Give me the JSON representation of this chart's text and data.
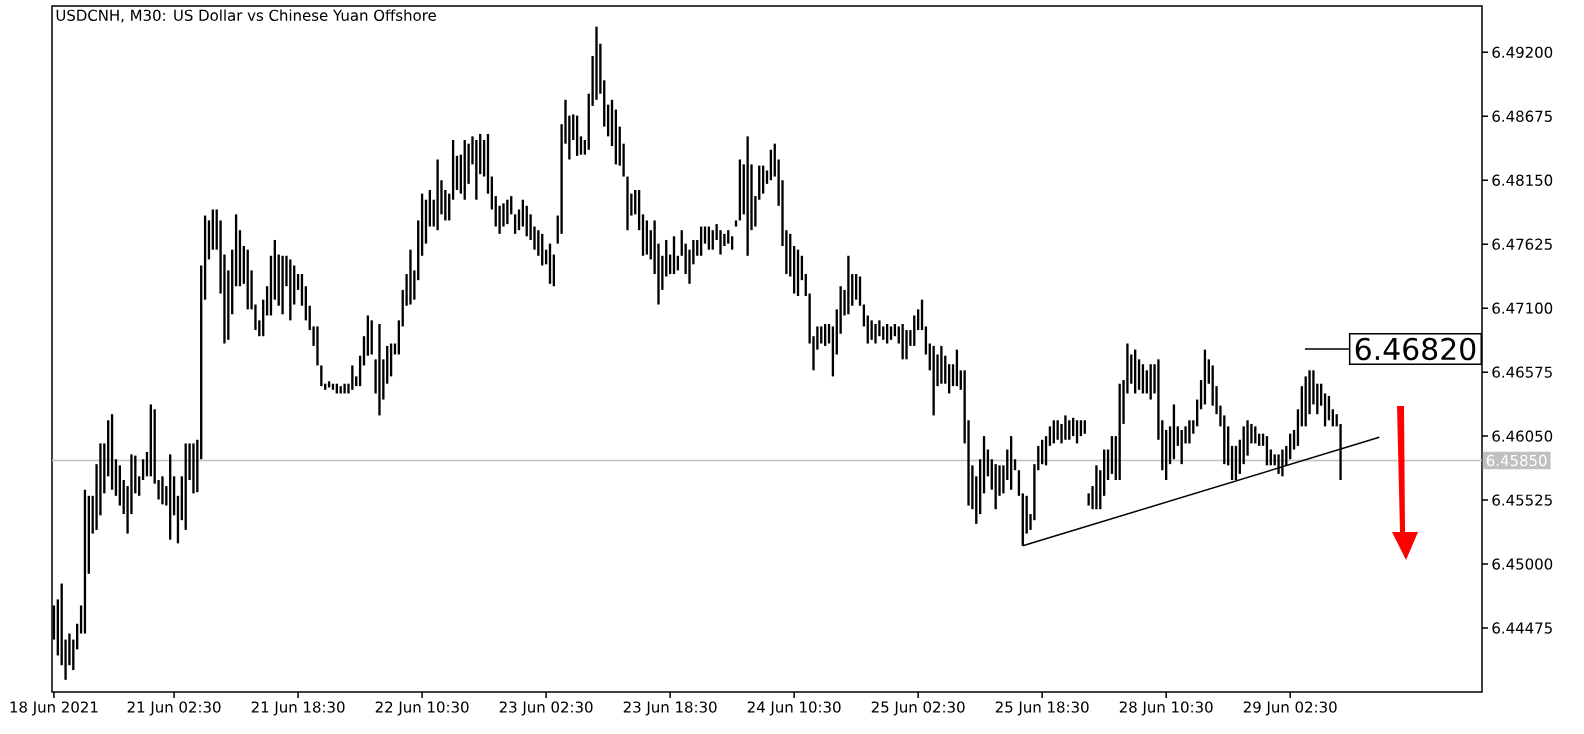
{
  "chart_data": {
    "type": "candlestick",
    "title": "USDCNH, M30:  US Dollar vs Chinese Yuan Offshore",
    "color": "#000000",
    "categories": [
      "18 Jun 2021",
      null,
      null,
      null,
      null,
      null,
      null,
      null,
      null,
      null,
      null,
      null,
      null,
      null,
      null,
      null,
      null,
      null,
      null,
      null,
      null,
      null,
      null,
      null,
      null,
      null,
      null,
      null,
      null,
      null,
      null,
      "21 Jun 02:30",
      null,
      null,
      null,
      null,
      null,
      null,
      null,
      null,
      null,
      null,
      null,
      null,
      null,
      null,
      null,
      null,
      null,
      null,
      null,
      null,
      null,
      null,
      null,
      null,
      null,
      null,
      null,
      null,
      null,
      null,
      null,
      "21 Jun 18:30",
      null,
      null,
      null,
      null,
      null,
      null,
      null,
      null,
      null,
      null,
      null,
      null,
      null,
      null,
      null,
      null,
      null,
      null,
      null,
      null,
      null,
      null,
      null,
      null,
      null,
      null,
      null,
      null,
      null,
      null,
      null,
      "22 Jun 10:30",
      null,
      null,
      null,
      null,
      null,
      null,
      null,
      null,
      null,
      null,
      null,
      null,
      null,
      null,
      null,
      null,
      null,
      null,
      null,
      null,
      null,
      null,
      null,
      null,
      null,
      null,
      null,
      null,
      null,
      null,
      null,
      "23 Jun 02:30",
      null,
      null,
      null,
      null,
      null,
      null,
      null,
      null,
      null,
      null,
      null,
      null,
      null,
      null,
      null,
      null,
      null,
      null,
      null,
      null,
      null,
      null,
      null,
      null,
      null,
      null,
      null,
      null,
      null,
      null,
      null,
      "23 Jun 18:30",
      null,
      null,
      null,
      null,
      null,
      null,
      null,
      null,
      null,
      null,
      null,
      null,
      null,
      null,
      null,
      null,
      null,
      null,
      null,
      null,
      null,
      null,
      null,
      null,
      null,
      null,
      null,
      null,
      null,
      null,
      null,
      "24 Jun 10:30",
      null,
      null,
      null,
      null,
      null,
      null,
      null,
      null,
      null,
      null,
      null,
      null,
      null,
      null,
      null,
      null,
      null,
      null,
      null,
      null,
      null,
      null,
      null,
      null,
      null,
      null,
      null,
      null,
      null,
      null,
      null,
      "25 Jun 02:30",
      null,
      null,
      null,
      null,
      null,
      null,
      null,
      null,
      null,
      null,
      null,
      null,
      null,
      null,
      null,
      null,
      null,
      null,
      null,
      null,
      null,
      null,
      null,
      null,
      null,
      null,
      null,
      null,
      null,
      null,
      null,
      "25 Jun 18:30",
      null,
      null,
      null,
      null,
      null,
      null,
      null,
      null,
      null,
      null,
      null,
      null,
      null,
      null,
      null,
      null,
      null,
      null,
      null,
      null,
      null,
      null,
      null,
      null,
      null,
      null,
      null,
      null,
      null,
      null,
      null,
      "28 Jun 10:30",
      null,
      null,
      null,
      null,
      null,
      null,
      null,
      null,
      null,
      null,
      null,
      null,
      null,
      null,
      null,
      null,
      null,
      null,
      null,
      null,
      null,
      null,
      null,
      null,
      null,
      null,
      null,
      null,
      null,
      null,
      null,
      "29 Jun 02:30",
      null,
      null,
      null,
      null,
      null,
      null,
      null,
      null,
      null,
      null,
      null,
      null,
      null,
      null,
      null,
      null,
      null,
      null,
      null,
      null,
      null,
      null,
      null,
      null,
      null,
      null,
      null,
      null,
      null,
      null,
      null,
      null,
      null,
      null,
      null,
      null,
      null,
      null,
      null,
      null,
      null,
      null,
      null,
      null,
      null,
      null,
      null,
      null,
      null
    ],
    "ohlc": [
      [
        6.4438,
        6.4466,
        6.4438,
        6.4466
      ],
      [
        6.4471,
        6.4471,
        6.4425,
        6.4425
      ],
      [
        6.4484,
        6.4484,
        6.4417,
        6.4417
      ],
      [
        6.4438,
        6.4438,
        6.4405,
        6.4405
      ],
      [
        6.4417,
        6.4443,
        6.4417,
        6.4443
      ],
      [
        6.4438,
        6.4438,
        6.4413,
        6.4413
      ],
      [
        6.443,
        6.4451,
        6.443,
        6.4451
      ],
      [
        6.4443,
        6.4466,
        6.4443,
        6.4466
      ],
      [
        6.4443,
        6.4561,
        6.4443,
        6.4561
      ],
      [
        6.4492,
        6.4556,
        6.4492,
        6.4556
      ],
      [
        6.4525,
        6.4556,
        6.4525,
        6.4556
      ],
      [
        6.4528,
        6.4582,
        6.4528,
        6.4582
      ],
      [
        6.454,
        6.4599,
        6.454,
        6.4599
      ],
      [
        6.4558,
        6.4599,
        6.4558,
        6.4599
      ],
      [
        6.4572,
        6.4618,
        6.4572,
        6.4618
      ],
      [
        6.4623,
        6.4623,
        6.4561,
        6.4561
      ],
      [
        6.4586,
        6.4586,
        6.4556,
        6.4556
      ],
      [
        6.4581,
        6.4581,
        6.4548,
        6.4548
      ],
      [
        6.4569,
        6.4569,
        6.4541,
        6.4541
      ],
      [
        6.4564,
        6.4564,
        6.4525,
        6.4525
      ],
      [
        6.4541,
        6.459,
        6.4541,
        6.459
      ],
      [
        6.4558,
        6.4589,
        6.4558,
        6.4589
      ],
      [
        6.4572,
        6.4572,
        6.4556,
        6.4556
      ],
      [
        6.4569,
        6.4586,
        6.4569,
        6.4586
      ],
      [
        6.4572,
        6.4592,
        6.4572,
        6.4592
      ],
      [
        6.4572,
        6.4631,
        6.4572,
        6.4631
      ],
      [
        6.4627,
        6.4627,
        6.4566,
        6.4566
      ],
      [
        6.4569,
        6.4569,
        6.4553,
        6.4553
      ],
      [
        6.4572,
        6.4572,
        6.4549,
        6.4549
      ],
      [
        6.4564,
        6.4564,
        6.4548,
        6.4548
      ],
      [
        6.452,
        6.459,
        6.452,
        6.459
      ],
      [
        6.4572,
        6.4572,
        6.454,
        6.454
      ],
      [
        6.4556,
        6.4556,
        6.4517,
        6.4517
      ],
      [
        6.4536,
        6.4572,
        6.4536,
        6.4572
      ],
      [
        6.4528,
        6.4599,
        6.4528,
        6.4599
      ],
      [
        6.4569,
        6.4599,
        6.4569,
        6.4599
      ],
      [
        6.4599,
        6.4599,
        6.4558,
        6.4558
      ],
      [
        6.4559,
        6.4602,
        6.4559,
        6.4602
      ],
      [
        6.4586,
        6.4745,
        6.4586,
        6.4745
      ],
      [
        6.4717,
        6.4786,
        6.4717,
        6.4786
      ],
      [
        6.475,
        6.4782,
        6.475,
        6.4782
      ],
      [
        6.4758,
        6.4791,
        6.4758,
        6.4791
      ],
      [
        6.4791,
        6.4791,
        6.4758,
        6.4758
      ],
      [
        6.4782,
        6.4782,
        6.4722,
        6.4722
      ],
      [
        6.4754,
        6.4754,
        6.4681,
        6.4681
      ],
      [
        6.4684,
        6.4741,
        6.4684,
        6.4741
      ],
      [
        6.4705,
        6.4758,
        6.4705,
        6.4758
      ],
      [
        6.4728,
        6.4787,
        6.4728,
        6.4787
      ],
      [
        6.4774,
        6.4774,
        6.4728,
        6.4728
      ],
      [
        6.4761,
        6.4761,
        6.473,
        6.473
      ],
      [
        6.4758,
        6.4758,
        6.4709,
        6.4709
      ],
      [
        6.4741,
        6.4741,
        6.4709,
        6.4709
      ],
      [
        6.4713,
        6.4713,
        6.4692,
        6.4692
      ],
      [
        6.47,
        6.47,
        6.4687,
        6.4687
      ],
      [
        6.4687,
        6.4717,
        6.4687,
        6.4717
      ],
      [
        6.4704,
        6.4728,
        6.4704,
        6.4728
      ],
      [
        6.4704,
        6.4753,
        6.4704,
        6.4753
      ],
      [
        6.4717,
        6.4766,
        6.4717,
        6.4766
      ],
      [
        6.4754,
        6.4754,
        6.4712,
        6.4712
      ],
      [
        6.4753,
        6.4753,
        6.4705,
        6.4705
      ],
      [
        6.4728,
        6.4753,
        6.4728,
        6.4753
      ],
      [
        6.475,
        6.475,
        6.47,
        6.47
      ],
      [
        6.4713,
        6.4745,
        6.4713,
        6.4745
      ],
      [
        6.4725,
        6.4738,
        6.4725,
        6.4738
      ],
      [
        6.4738,
        6.4738,
        6.4712,
        6.4712
      ],
      [
        6.4728,
        6.4728,
        6.47,
        6.47
      ],
      [
        6.4712,
        6.4712,
        6.4692,
        6.4692
      ],
      [
        6.4695,
        6.4695,
        6.4679,
        6.4679
      ],
      [
        6.4695,
        6.4695,
        6.4663,
        6.4663
      ],
      [
        6.4663,
        6.4663,
        6.4646,
        6.4646
      ],
      [
        6.4648,
        6.4648,
        6.4643,
        6.4643
      ],
      [
        6.4645,
        6.465,
        6.4645,
        6.465
      ],
      [
        6.4648,
        6.4648,
        6.4643,
        6.4643
      ],
      [
        6.4648,
        6.4648,
        6.464,
        6.464
      ],
      [
        6.4646,
        6.4646,
        6.464,
        6.464
      ],
      [
        6.464,
        6.4648,
        6.464,
        6.4648
      ],
      [
        6.4648,
        6.4648,
        6.464,
        6.464
      ],
      [
        6.4643,
        6.4663,
        6.4643,
        6.4663
      ],
      [
        6.4654,
        6.4654,
        6.4646,
        6.4646
      ],
      [
        6.4646,
        6.4671,
        6.4646,
        6.4671
      ],
      [
        6.4663,
        6.4687,
        6.4663,
        6.4687
      ],
      [
        6.4671,
        6.4704,
        6.4671,
        6.4704
      ],
      [
        6.47,
        6.47,
        6.4672,
        6.4672
      ],
      [
        6.4668,
        6.4668,
        6.464,
        6.464
      ],
      [
        6.4622,
        6.4697,
        6.4622,
        6.4697
      ],
      [
        6.4668,
        6.4668,
        6.4635,
        6.4635
      ],
      [
        6.4648,
        6.4679,
        6.4648,
        6.4679
      ],
      [
        6.4654,
        6.4681,
        6.4654,
        6.4681
      ],
      [
        6.4672,
        6.4681,
        6.4672,
        6.4681
      ],
      [
        6.4672,
        6.47,
        6.4672,
        6.47
      ],
      [
        6.4695,
        6.4725,
        6.4695,
        6.4725
      ],
      [
        6.4712,
        6.4738,
        6.4712,
        6.4738
      ],
      [
        6.4713,
        6.4758,
        6.4713,
        6.4758
      ],
      [
        6.4741,
        6.4741,
        6.4717,
        6.4717
      ],
      [
        6.4733,
        6.4782,
        6.4733,
        6.4782
      ],
      [
        6.4753,
        6.4804,
        6.4753,
        6.4804
      ],
      [
        6.4763,
        6.4799,
        6.4763,
        6.4799
      ],
      [
        6.4777,
        6.4807,
        6.4777,
        6.4807
      ],
      [
        6.4799,
        6.4799,
        6.4777,
        6.4777
      ],
      [
        6.4774,
        6.4832,
        6.4774,
        6.4832
      ],
      [
        6.4815,
        6.4815,
        6.4787,
        6.4787
      ],
      [
        6.4807,
        6.4807,
        6.4782,
        6.4782
      ],
      [
        6.4782,
        6.4804,
        6.4782,
        6.4804
      ],
      [
        6.4799,
        6.4848,
        6.4799,
        6.4848
      ],
      [
        6.4835,
        6.4835,
        6.4807,
        6.4807
      ],
      [
        6.4804,
        6.4836,
        6.4804,
        6.4836
      ],
      [
        6.4799,
        6.4848,
        6.4799,
        6.4848
      ],
      [
        6.4845,
        6.4845,
        6.4812,
        6.4812
      ],
      [
        6.4828,
        6.4851,
        6.4828,
        6.4851
      ],
      [
        6.4848,
        6.4848,
        6.4799,
        6.4799
      ],
      [
        6.482,
        6.4853,
        6.482,
        6.4853
      ],
      [
        6.4848,
        6.4848,
        6.4818,
        6.4818
      ],
      [
        6.4804,
        6.4853,
        6.4804,
        6.4853
      ],
      [
        6.4818,
        6.4818,
        6.4791,
        6.4791
      ],
      [
        6.4802,
        6.4802,
        6.4777,
        6.4777
      ],
      [
        6.4794,
        6.4794,
        6.4771,
        6.4771
      ],
      [
        6.4777,
        6.4796,
        6.4777,
        6.4796
      ],
      [
        6.4779,
        6.4799,
        6.4779,
        6.4799
      ],
      [
        6.4787,
        6.4802,
        6.4787,
        6.4802
      ],
      [
        6.4787,
        6.4787,
        6.4771,
        6.4771
      ],
      [
        6.4774,
        6.4791,
        6.4774,
        6.4791
      ],
      [
        6.4777,
        6.4799,
        6.4777,
        6.4799
      ],
      [
        6.4794,
        6.4794,
        6.4769,
        6.4769
      ],
      [
        6.4787,
        6.4787,
        6.4766,
        6.4766
      ],
      [
        6.4777,
        6.4777,
        6.4758,
        6.4758
      ],
      [
        6.4774,
        6.4774,
        6.4753,
        6.4753
      ],
      [
        6.4771,
        6.4771,
        6.4745,
        6.4745
      ],
      [
        6.4758,
        6.4758,
        6.4746,
        6.4746
      ],
      [
        6.4763,
        6.4763,
        6.473,
        6.473
      ],
      [
        6.4754,
        6.4754,
        6.4728,
        6.4728
      ],
      [
        6.4763,
        6.4786,
        6.4763,
        6.4786
      ],
      [
        6.4771,
        6.4861,
        6.4771,
        6.4861
      ],
      [
        6.4845,
        6.4881,
        6.4845,
        6.4881
      ],
      [
        6.4868,
        6.4868,
        6.4832,
        6.4832
      ],
      [
        6.4848,
        6.4869,
        6.4848,
        6.4869
      ],
      [
        6.4868,
        6.4868,
        6.4835,
        6.4835
      ],
      [
        6.4851,
        6.4851,
        6.4836,
        6.4836
      ],
      [
        6.4836,
        6.4848,
        6.4836,
        6.4848
      ],
      [
        6.484,
        6.4886,
        6.484,
        6.4886
      ],
      [
        6.4876,
        6.4917,
        6.4876,
        6.4917
      ],
      [
        6.4881,
        6.4941,
        6.4881,
        6.4941
      ],
      [
        6.4927,
        6.4927,
        6.4886,
        6.4886
      ],
      [
        6.4897,
        6.4897,
        6.4859,
        6.4859
      ],
      [
        6.4877,
        6.4877,
        6.4851,
        6.4851
      ],
      [
        6.4881,
        6.4881,
        6.4843,
        6.4843
      ],
      [
        6.4873,
        6.4873,
        6.4828,
        6.4828
      ],
      [
        6.4859,
        6.4859,
        6.4827,
        6.4827
      ],
      [
        6.4845,
        6.4845,
        6.4818,
        6.4818
      ],
      [
        6.4818,
        6.4818,
        6.4774,
        6.4774
      ],
      [
        6.4786,
        6.4804,
        6.4786,
        6.4804
      ],
      [
        6.4787,
        6.4807,
        6.4787,
        6.4807
      ],
      [
        6.4807,
        6.4807,
        6.4774,
        6.4774
      ],
      [
        6.4787,
        6.4787,
        6.4753,
        6.4753
      ],
      [
        6.4754,
        6.4782,
        6.4754,
        6.4782
      ],
      [
        6.4774,
        6.4774,
        6.475,
        6.475
      ],
      [
        6.4782,
        6.4782,
        6.4738,
        6.4738
      ],
      [
        6.4763,
        6.4763,
        6.4713,
        6.4713
      ],
      [
        6.4725,
        6.4753,
        6.4725,
        6.4753
      ],
      [
        6.4736,
        6.4766,
        6.4736,
        6.4766
      ],
      [
        6.4754,
        6.4754,
        6.4738,
        6.4738
      ],
      [
        6.4738,
        6.4769,
        6.4738,
        6.4769
      ],
      [
        6.4753,
        6.4753,
        6.4741,
        6.4741
      ],
      [
        6.4753,
        6.4774,
        6.4753,
        6.4774
      ],
      [
        6.4763,
        6.4763,
        6.4738,
        6.4738
      ],
      [
        6.4758,
        6.4758,
        6.473,
        6.473
      ],
      [
        6.4746,
        6.4766,
        6.4746,
        6.4766
      ],
      [
        6.4753,
        6.4766,
        6.4753,
        6.4766
      ],
      [
        6.4753,
        6.4777,
        6.4753,
        6.4777
      ],
      [
        6.4763,
        6.4777,
        6.4763,
        6.4777
      ],
      [
        6.4777,
        6.4777,
        6.4758,
        6.4758
      ],
      [
        6.4774,
        6.4774,
        6.4758,
        6.4758
      ],
      [
        6.4766,
        6.4779,
        6.4766,
        6.4779
      ],
      [
        6.4774,
        6.4774,
        6.4754,
        6.4754
      ],
      [
        6.4761,
        6.4771,
        6.4761,
        6.4771
      ],
      [
        6.4763,
        6.4774,
        6.4763,
        6.4774
      ],
      [
        6.4769,
        6.4769,
        6.4758,
        6.4758
      ],
      [
        6.4777,
        6.4782,
        6.4777,
        6.4782
      ],
      [
        6.4782,
        6.4832,
        6.4782,
        6.4832
      ],
      [
        6.4828,
        6.4828,
        6.4787,
        6.4787
      ],
      [
        6.4753,
        6.4851,
        6.4753,
        6.4851
      ],
      [
        6.4828,
        6.4828,
        6.4774,
        6.4774
      ],
      [
        6.4802,
        6.4802,
        6.4777,
        6.4777
      ],
      [
        6.4799,
        6.4827,
        6.4799,
        6.4827
      ],
      [
        6.4804,
        6.4827,
        6.4804,
        6.4827
      ],
      [
        6.4812,
        6.4823,
        6.4812,
        6.4823
      ],
      [
        6.4815,
        6.484,
        6.4815,
        6.484
      ],
      [
        6.4818,
        6.4845,
        6.4818,
        6.4845
      ],
      [
        6.4832,
        6.4832,
        6.4794,
        6.4794
      ],
      [
        6.4815,
        6.4815,
        6.4761,
        6.4761
      ],
      [
        6.4774,
        6.4774,
        6.4738,
        6.4738
      ],
      [
        6.4771,
        6.4771,
        6.4736,
        6.4736
      ],
      [
        6.4761,
        6.4761,
        6.4722,
        6.4722
      ],
      [
        6.4758,
        6.4758,
        6.472,
        6.472
      ],
      [
        6.4733,
        6.4753,
        6.4733,
        6.4753
      ],
      [
        6.4738,
        6.4738,
        6.472,
        6.472
      ],
      [
        6.4722,
        6.4722,
        6.4681,
        6.4681
      ],
      [
        6.4687,
        6.4687,
        6.4659,
        6.4659
      ],
      [
        6.4676,
        6.4695,
        6.4676,
        6.4695
      ],
      [
        6.4681,
        6.4695,
        6.4681,
        6.4695
      ],
      [
        6.4697,
        6.4697,
        6.4679,
        6.4679
      ],
      [
        6.4681,
        6.4697,
        6.4681,
        6.4697
      ],
      [
        6.4695,
        6.4695,
        6.4654,
        6.4654
      ],
      [
        6.4672,
        6.4709,
        6.4672,
        6.4709
      ],
      [
        6.4689,
        6.4728,
        6.4689,
        6.4728
      ],
      [
        6.4704,
        6.4725,
        6.4704,
        6.4725
      ],
      [
        6.4705,
        6.4753,
        6.4705,
        6.4753
      ],
      [
        6.4738,
        6.4738,
        6.4712,
        6.4712
      ],
      [
        6.4717,
        6.4738,
        6.4717,
        6.4738
      ],
      [
        6.4736,
        6.4736,
        6.4712,
        6.4712
      ],
      [
        6.4713,
        6.4713,
        6.4695,
        6.4695
      ],
      [
        6.4704,
        6.4704,
        6.4681,
        6.4681
      ],
      [
        6.4684,
        6.47,
        6.4684,
        6.47
      ],
      [
        6.4697,
        6.4697,
        6.4681,
        6.4681
      ],
      [
        6.4687,
        6.47,
        6.4687,
        6.47
      ],
      [
        6.4695,
        6.4695,
        6.4684,
        6.4684
      ],
      [
        6.4681,
        6.4697,
        6.4681,
        6.4697
      ],
      [
        6.4695,
        6.4695,
        6.4684,
        6.4684
      ],
      [
        6.4687,
        6.4697,
        6.4687,
        6.4697
      ],
      [
        6.4695,
        6.4695,
        6.4681,
        6.4681
      ],
      [
        6.4697,
        6.4697,
        6.4668,
        6.4668
      ],
      [
        6.4668,
        6.4692,
        6.4668,
        6.4692
      ],
      [
        6.4679,
        6.4692,
        6.4679,
        6.4692
      ],
      [
        6.4679,
        6.4704,
        6.4679,
        6.4704
      ],
      [
        6.4692,
        6.4709,
        6.4692,
        6.4709
      ],
      [
        6.4692,
        6.4717,
        6.4692,
        6.4717
      ],
      [
        6.4695,
        6.4695,
        6.4672,
        6.4672
      ],
      [
        6.4681,
        6.4681,
        6.4659,
        6.4659
      ],
      [
        6.4679,
        6.4679,
        6.4622,
        6.4622
      ],
      [
        6.4646,
        6.4672,
        6.4646,
        6.4672
      ],
      [
        6.4648,
        6.4679,
        6.4648,
        6.4679
      ],
      [
        6.4671,
        6.4671,
        6.4648,
        6.4648
      ],
      [
        6.4664,
        6.4664,
        6.464,
        6.464
      ],
      [
        6.4646,
        6.4664,
        6.4646,
        6.4664
      ],
      [
        6.4646,
        6.4676,
        6.4646,
        6.4676
      ],
      [
        6.4659,
        6.4659,
        6.4643,
        6.4643
      ],
      [
        6.4659,
        6.4659,
        6.4599,
        6.4599
      ],
      [
        6.4618,
        6.4618,
        6.4548,
        6.4548
      ],
      [
        6.4581,
        6.4581,
        6.4545,
        6.4545
      ],
      [
        6.4572,
        6.4572,
        6.4533,
        6.4533
      ],
      [
        6.4541,
        6.4586,
        6.4541,
        6.4586
      ],
      [
        6.4558,
        6.4605,
        6.4558,
        6.4605
      ],
      [
        6.4572,
        6.4594,
        6.4572,
        6.4594
      ],
      [
        6.4586,
        6.4586,
        6.4561,
        6.4561
      ],
      [
        6.4582,
        6.4582,
        6.4545,
        6.4545
      ],
      [
        6.4556,
        6.4581,
        6.4556,
        6.4581
      ],
      [
        6.4558,
        6.4581,
        6.4558,
        6.4581
      ],
      [
        6.4569,
        6.4594,
        6.4569,
        6.4594
      ],
      [
        6.4605,
        6.4605,
        6.4561,
        6.4561
      ],
      [
        6.4586,
        6.4586,
        6.4577,
        6.4577
      ],
      [
        6.4577,
        6.4577,
        6.4556,
        6.4556
      ],
      [
        6.4558,
        6.4558,
        6.4515,
        6.4515
      ],
      [
        6.4525,
        6.4556,
        6.4525,
        6.4556
      ],
      [
        6.4541,
        6.4541,
        6.4528,
        6.4528
      ],
      [
        6.4536,
        6.4582,
        6.4536,
        6.4582
      ],
      [
        6.4577,
        6.4597,
        6.4577,
        6.4597
      ],
      [
        6.4582,
        6.4602,
        6.4582,
        6.4602
      ],
      [
        6.4581,
        6.4605,
        6.4581,
        6.4605
      ],
      [
        6.4597,
        6.4613,
        6.4597,
        6.4613
      ],
      [
        6.4599,
        6.4618,
        6.4599,
        6.4618
      ],
      [
        6.4602,
        6.4618,
        6.4602,
        6.4618
      ],
      [
        6.4615,
        6.4615,
        6.4599,
        6.4599
      ],
      [
        6.4602,
        6.4622,
        6.4602,
        6.4622
      ],
      [
        6.4618,
        6.4618,
        6.4602,
        6.4602
      ],
      [
        6.4605,
        6.462,
        6.4605,
        6.462
      ],
      [
        6.4618,
        6.4618,
        6.4599,
        6.4599
      ],
      [
        6.4605,
        6.4618,
        6.4605,
        6.4618
      ],
      [
        6.4618,
        6.4618,
        6.4607,
        6.4607
      ],
      [
        6.4558,
        6.4558,
        6.4548,
        6.4548
      ],
      [
        6.4545,
        6.4564,
        6.4545,
        6.4564
      ],
      [
        6.4545,
        6.4581,
        6.4545,
        6.4581
      ],
      [
        6.4577,
        6.4577,
        6.4545,
        6.4545
      ],
      [
        6.4556,
        6.4594,
        6.4556,
        6.4594
      ],
      [
        6.4569,
        6.4594,
        6.4569,
        6.4594
      ],
      [
        6.4574,
        6.4605,
        6.4574,
        6.4605
      ],
      [
        6.4605,
        6.4605,
        6.4569,
        6.4569
      ],
      [
        6.4569,
        6.4648,
        6.4569,
        6.4648
      ],
      [
        6.4615,
        6.4651,
        6.4615,
        6.4651
      ],
      [
        6.464,
        6.4681,
        6.464,
        6.4681
      ],
      [
        6.4672,
        6.4672,
        6.4648,
        6.4648
      ],
      [
        6.464,
        6.4676,
        6.464,
        6.4676
      ],
      [
        6.4668,
        6.4668,
        6.4643,
        6.4643
      ],
      [
        6.4664,
        6.4664,
        6.464,
        6.464
      ],
      [
        6.4659,
        6.4659,
        6.464,
        6.464
      ],
      [
        6.4635,
        6.4664,
        6.4635,
        6.4664
      ],
      [
        6.464,
        6.4664,
        6.464,
        6.4664
      ],
      [
        6.4668,
        6.4668,
        6.4602,
        6.4602
      ],
      [
        6.4618,
        6.4618,
        6.4577,
        6.4577
      ],
      [
        6.461,
        6.461,
        6.4569,
        6.4569
      ],
      [
        6.4582,
        6.4613,
        6.4582,
        6.4613
      ],
      [
        6.4586,
        6.4631,
        6.4586,
        6.4631
      ],
      [
        6.4613,
        6.4613,
        6.4597,
        6.4597
      ],
      [
        6.461,
        6.461,
        6.4582,
        6.4582
      ],
      [
        6.4599,
        6.4613,
        6.4599,
        6.4613
      ],
      [
        6.4599,
        6.4618,
        6.4599,
        6.4618
      ],
      [
        6.4607,
        6.4618,
        6.4607,
        6.4618
      ],
      [
        6.4613,
        6.4635,
        6.4613,
        6.4635
      ],
      [
        6.4627,
        6.4651,
        6.4627,
        6.4651
      ],
      [
        6.4631,
        6.4676,
        6.4631,
        6.4676
      ],
      [
        6.4668,
        6.4668,
        6.4648,
        6.4648
      ],
      [
        6.4663,
        6.4663,
        6.463,
        6.463
      ],
      [
        6.4646,
        6.4646,
        6.4623,
        6.4623
      ],
      [
        6.463,
        6.463,
        6.4613,
        6.4613
      ],
      [
        6.4622,
        6.4622,
        6.4582,
        6.4582
      ],
      [
        6.4613,
        6.4613,
        6.4581,
        6.4581
      ],
      [
        6.4597,
        6.4597,
        6.4569,
        6.4569
      ],
      [
        6.4569,
        6.4597,
        6.4569,
        6.4597
      ],
      [
        6.4574,
        6.4602,
        6.4574,
        6.4602
      ],
      [
        6.4582,
        6.4613,
        6.4582,
        6.4613
      ],
      [
        6.4589,
        6.4618,
        6.4589,
        6.4618
      ],
      [
        6.4615,
        6.4615,
        6.4599,
        6.4599
      ],
      [
        6.4613,
        6.4613,
        6.4599,
        6.4599
      ],
      [
        6.4607,
        6.4607,
        6.4597,
        6.4597
      ],
      [
        6.4597,
        6.4607,
        6.4597,
        6.4607
      ],
      [
        6.4605,
        6.4605,
        6.4581,
        6.4581
      ],
      [
        6.4594,
        6.4594,
        6.4581,
        6.4581
      ],
      [
        6.459,
        6.459,
        6.4581,
        6.4581
      ],
      [
        6.459,
        6.459,
        6.4574,
        6.4574
      ],
      [
        6.4572,
        6.4594,
        6.4572,
        6.4594
      ],
      [
        6.4581,
        6.4597,
        6.4581,
        6.4597
      ],
      [
        6.4586,
        6.4607,
        6.4586,
        6.4607
      ],
      [
        6.4594,
        6.461,
        6.4594,
        6.461
      ],
      [
        6.4597,
        6.4627,
        6.4597,
        6.4627
      ],
      [
        6.4613,
        6.4646,
        6.4613,
        6.4646
      ],
      [
        6.4613,
        6.4654,
        6.4613,
        6.4654
      ],
      [
        6.4623,
        6.4659,
        6.4623,
        6.4659
      ],
      [
        6.4659,
        6.4659,
        6.4631,
        6.4631
      ],
      [
        6.4648,
        6.4648,
        6.4623,
        6.4623
      ],
      [
        6.463,
        6.4648,
        6.463,
        6.4648
      ],
      [
        6.464,
        6.464,
        6.4613,
        6.4613
      ],
      [
        6.4618,
        6.4638,
        6.4618,
        6.4638
      ],
      [
        6.4627,
        6.4627,
        6.4613,
        6.4613
      ],
      [
        6.4623,
        6.4623,
        6.4613,
        6.4613
      ],
      [
        6.4615,
        6.4615,
        6.4569,
        6.4569
      ],
      null,
      null,
      null,
      null,
      null,
      null,
      null,
      null,
      null,
      null,
      null,
      null,
      null,
      null,
      null,
      null,
      null,
      null,
      null,
      null,
      null,
      null,
      null,
      null,
      null,
      null,
      null,
      null,
      null,
      null,
      null,
      null,
      null,
      null,
      null,
      null
    ],
    "series": [
      {
        "type": "line",
        "color": "#000000",
        "values": [
          null,
          null,
          null,
          null,
          null,
          null,
          null,
          null,
          null,
          null,
          null,
          null,
          null,
          null,
          null,
          null,
          null,
          null,
          null,
          null,
          null,
          null,
          null,
          null,
          null,
          null,
          null,
          null,
          null,
          null,
          null,
          null,
          null,
          null,
          null,
          null,
          null,
          null,
          null,
          null,
          null,
          null,
          null,
          null,
          null,
          null,
          null,
          null,
          null,
          null,
          null,
          null,
          null,
          null,
          null,
          null,
          null,
          null,
          null,
          null,
          null,
          null,
          null,
          null,
          null,
          null,
          null,
          null,
          null,
          null,
          null,
          null,
          null,
          null,
          null,
          null,
          null,
          null,
          null,
          null,
          null,
          null,
          null,
          null,
          null,
          null,
          null,
          null,
          null,
          null,
          null,
          null,
          null,
          null,
          null,
          null,
          null,
          null,
          null,
          null,
          null,
          null,
          null,
          null,
          null,
          null,
          null,
          null,
          null,
          null,
          null,
          null,
          null,
          null,
          null,
          null,
          null,
          null,
          null,
          null,
          null,
          null,
          null,
          null,
          null,
          null,
          null,
          null,
          null,
          null,
          null,
          null,
          null,
          null,
          null,
          null,
          null,
          null,
          null,
          null,
          null,
          null,
          null,
          null,
          null,
          null,
          null,
          null,
          null,
          null,
          null,
          null,
          null,
          null,
          null,
          null,
          null,
          null,
          null,
          null,
          null,
          null,
          null,
          null,
          null,
          null,
          null,
          null,
          null,
          null,
          null,
          null,
          null,
          null,
          null,
          null,
          null,
          null,
          null,
          null,
          null,
          null,
          null,
          null,
          null,
          null,
          null,
          null,
          null,
          null,
          null,
          null,
          null,
          null,
          null,
          null,
          null,
          null,
          null,
          null,
          null,
          null,
          null,
          null,
          null,
          null,
          null,
          null,
          null,
          null,
          null,
          null,
          null,
          null,
          null,
          null,
          null,
          null,
          null,
          null,
          null,
          null,
          null,
          null,
          null,
          null,
          null,
          null,
          null,
          null,
          null,
          null,
          null,
          null,
          null,
          null,
          null,
          null,
          null,
          null,
          null,
          null,
          null,
          null,
          null,
          null,
          null,
          null,
          null,
          null,
          6.4515,
          null,
          null,
          null,
          null,
          null,
          null,
          null,
          null,
          null,
          null,
          null,
          null,
          null,
          null,
          null,
          null,
          null,
          null,
          null,
          null,
          null,
          null,
          null,
          null,
          null,
          null,
          null,
          null,
          null,
          null,
          null,
          null,
          null,
          null,
          null,
          null,
          null,
          null,
          null,
          null,
          null,
          null,
          null,
          null,
          null,
          null,
          null,
          null,
          null,
          null,
          null,
          null,
          null,
          null,
          null,
          null,
          null,
          null,
          null,
          null,
          null,
          null,
          null,
          null,
          null,
          null,
          null,
          null,
          null,
          null,
          null,
          null,
          null,
          null,
          null,
          null,
          null,
          null,
          null,
          null,
          null,
          null,
          null,
          null,
          null,
          null,
          null,
          null,
          null,
          null,
          null,
          6.4604,
          null,
          null,
          null,
          null,
          null,
          null,
          null,
          null,
          null,
          null,
          null,
          null,
          null,
          null,
          null,
          null,
          null,
          null,
          null,
          null,
          null,
          null,
          null,
          null,
          null,
          null
        ]
      }
    ],
    "ylim": [
      6.4395,
      6.4958
    ],
    "yticks": [
      {
        "value": 6.492,
        "label": "6.49200"
      },
      {
        "value": 6.48675,
        "label": "6.48675"
      },
      {
        "value": 6.4815,
        "label": "6.48150"
      },
      {
        "value": 6.47625,
        "label": "6.47625"
      },
      {
        "value": 6.471,
        "label": "6.47100"
      },
      {
        "value": 6.46575,
        "label": "6.46575"
      },
      {
        "value": 6.4605,
        "label": "6.46050"
      },
      {
        "value": 6.45525,
        "label": "6.45525"
      },
      {
        "value": 6.45,
        "label": "6.45000"
      },
      {
        "value": 6.44475,
        "label": "6.44475"
      }
    ],
    "ref_lines": [
      {
        "axis": "y",
        "value": 6.4585,
        "label": "6.45850",
        "color": "#c0c0c0"
      }
    ],
    "annotations": [
      "6.46820"
    ]
  }
}
